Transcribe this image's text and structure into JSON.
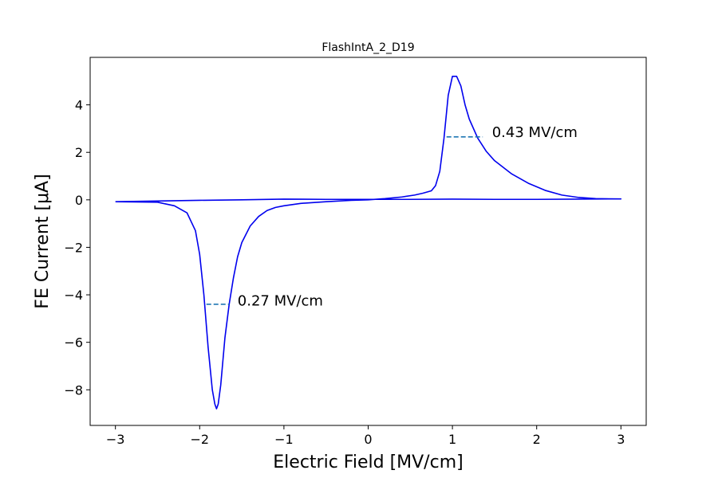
{
  "chart_data": {
    "type": "line",
    "title": "FlashIntA_2_D19",
    "xlabel": "Electric Field [MV/cm]",
    "ylabel": "FE Current [μA]",
    "xlim": [
      -3.3,
      3.3
    ],
    "ylim": [
      -9.5,
      6.0
    ],
    "xticks": [
      -3,
      -2,
      -1,
      0,
      1,
      2,
      3
    ],
    "yticks": [
      -8,
      -6,
      -4,
      -2,
      0,
      2,
      4
    ],
    "xtick_labels": [
      "−3",
      "−2",
      "−1",
      "0",
      "1",
      "2",
      "3"
    ],
    "ytick_labels": [
      "−8",
      "−6",
      "−4",
      "−2",
      "0",
      "2",
      "4"
    ],
    "grid": false,
    "series": [
      {
        "color": "#0000ee",
        "x": [
          -3.0,
          -2.5,
          -2.3,
          -2.15,
          -2.05,
          -2.0,
          -1.95,
          -1.9,
          -1.85,
          -1.82,
          -1.8,
          -1.78,
          -1.75,
          -1.7,
          -1.65,
          -1.6,
          -1.55,
          -1.5,
          -1.4,
          -1.3,
          -1.2,
          -1.1,
          -1.0,
          -0.8,
          -0.5,
          -0.2,
          0.0,
          0.2,
          0.4,
          0.55,
          0.65,
          0.75,
          0.8,
          0.85,
          0.9,
          0.95,
          1.0,
          1.05,
          1.1,
          1.15,
          1.2,
          1.3,
          1.4,
          1.5,
          1.7,
          1.9,
          2.1,
          2.3,
          2.5,
          2.7,
          3.0,
          2.5,
          2.0,
          1.5,
          1.0,
          0.5,
          0.0,
          -0.5,
          -1.0,
          -1.5,
          -2.0,
          -2.5,
          -3.0
        ],
        "y": [
          -0.08,
          -0.1,
          -0.25,
          -0.55,
          -1.3,
          -2.3,
          -4.0,
          -6.2,
          -8.0,
          -8.6,
          -8.8,
          -8.6,
          -7.8,
          -5.8,
          -4.4,
          -3.3,
          -2.4,
          -1.8,
          -1.1,
          -0.7,
          -0.45,
          -0.32,
          -0.25,
          -0.15,
          -0.08,
          -0.02,
          0.0,
          0.05,
          0.12,
          0.2,
          0.28,
          0.38,
          0.6,
          1.2,
          2.6,
          4.4,
          5.2,
          5.2,
          4.8,
          4.0,
          3.4,
          2.6,
          2.05,
          1.65,
          1.1,
          0.7,
          0.4,
          0.2,
          0.1,
          0.05,
          0.04,
          0.03,
          0.02,
          0.02,
          0.03,
          0.02,
          0.02,
          0.02,
          0.03,
          0.0,
          -0.02,
          -0.05,
          -0.08
        ]
      }
    ],
    "annotations": [
      {
        "text": "0.43 MV/cm",
        "x": 1.47,
        "y": 2.85,
        "line_x": [
          0.93,
          1.36
        ],
        "line_y": 2.65,
        "line_color": "#1f77b4"
      },
      {
        "text": "0.27 MV/cm",
        "x": -1.55,
        "y": -4.25,
        "line_x": [
          -1.92,
          -1.65
        ],
        "line_y": -4.4,
        "line_color": "#1f77b4"
      }
    ]
  }
}
